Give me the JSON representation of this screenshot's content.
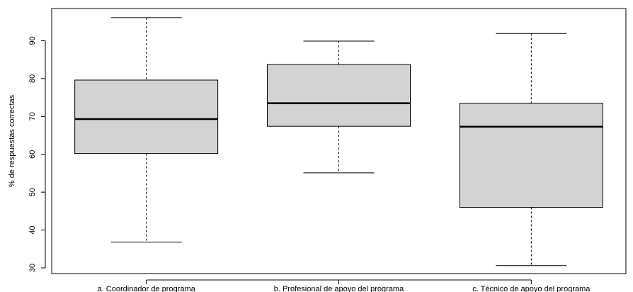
{
  "chart_data": {
    "type": "boxplot",
    "title": "",
    "xlabel": "",
    "ylabel": "% de respuestas correctas",
    "ylim": [
      28.5,
      98.5
    ],
    "yticks": [
      30,
      40,
      50,
      60,
      70,
      80,
      90
    ],
    "grid": false,
    "box_fill": "#d3d3d3",
    "stroke": "#000000",
    "categories": [
      "a. Coordinador de programa",
      "b. Profesional de apoyo del programa",
      "c. Técnico de apoyo del programa"
    ],
    "boxes": [
      {
        "min": 36.8,
        "q1": 60.2,
        "median": 69.3,
        "q3": 79.6,
        "max": 96.1
      },
      {
        "min": 55.1,
        "q1": 67.4,
        "median": 73.5,
        "q3": 83.7,
        "max": 89.9
      },
      {
        "min": 30.6,
        "q1": 46.0,
        "median": 67.3,
        "q3": 73.5,
        "max": 91.9
      }
    ]
  }
}
